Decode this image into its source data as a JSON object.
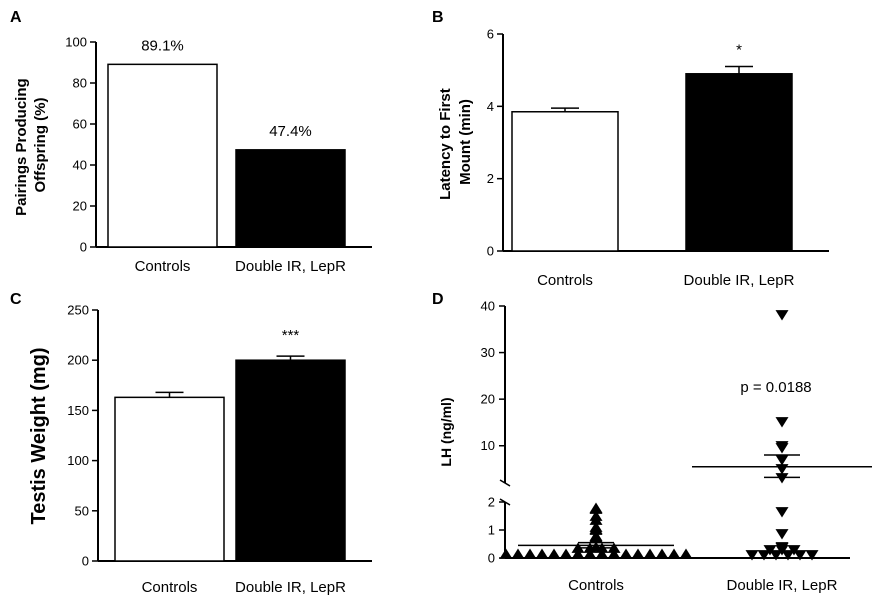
{
  "chart_data": [
    {
      "panel": "A",
      "type": "bar",
      "ylabel": "Pairings Producing Offspring (%)",
      "ylabel_lines": [
        "Pairings Producing",
        "Offspring (%)"
      ],
      "categories": [
        "Controls",
        "Double IR, LepR"
      ],
      "values": [
        89.1,
        47.4
      ],
      "data_labels": [
        "89.1%",
        "47.4%"
      ],
      "bar_fills": [
        "#ffffff",
        "#000000"
      ],
      "ylim": [
        0,
        100
      ],
      "yticks": [
        0,
        20,
        40,
        60,
        80,
        100
      ]
    },
    {
      "panel": "B",
      "type": "bar",
      "ylabel": "Latency to First Mount (min)",
      "ylabel_lines": [
        "Latency to First",
        "Mount (min)"
      ],
      "categories": [
        "Controls",
        "Double IR, LepR"
      ],
      "values": [
        3.85,
        4.9
      ],
      "errors": [
        0.1,
        0.2
      ],
      "annotations": [
        "",
        "*"
      ],
      "bar_fills": [
        "#ffffff",
        "#000000"
      ],
      "ylim": [
        0,
        6
      ],
      "yticks": [
        0,
        2,
        4,
        6
      ]
    },
    {
      "panel": "C",
      "type": "bar",
      "ylabel": "Testis Weight (mg)",
      "categories": [
        "Controls",
        "Double IR, LepR"
      ],
      "values": [
        163,
        200
      ],
      "errors": [
        5,
        4
      ],
      "annotations": [
        "",
        "***"
      ],
      "bar_fills": [
        "#ffffff",
        "#000000"
      ],
      "ylim": [
        0,
        250
      ],
      "yticks": [
        0,
        50,
        100,
        150,
        200,
        250
      ]
    },
    {
      "panel": "D",
      "type": "scatter",
      "ylabel": "LH (ng/ml)",
      "categories": [
        "Controls",
        "Double IR, LepR"
      ],
      "annotation": "p = 0.0188",
      "broken_axis": true,
      "lower_range": [
        0,
        2
      ],
      "upper_range": [
        2,
        40
      ],
      "yticks": [
        0,
        1,
        2,
        10,
        20,
        30,
        40
      ],
      "marker_shapes": [
        "triangle-up",
        "triangle-down"
      ],
      "series": [
        {
          "values": [
            0.15,
            0.15,
            0.15,
            0.15,
            0.15,
            0.15,
            0.15,
            0.15,
            0.15,
            0.15,
            0.15,
            0.15,
            0.15,
            0.15,
            0.15,
            0.15,
            0.35,
            0.35,
            0.35,
            0.35,
            0.4,
            0.7,
            0.75,
            0.8,
            1.0,
            1.05,
            1.1,
            1.35,
            1.5,
            1.75,
            1.8
          ],
          "mean": 0.45,
          "sem_range": [
            0.36,
            0.55
          ]
        },
        {
          "values": [
            0.1,
            0.1,
            0.1,
            0.1,
            0.1,
            0.1,
            0.3,
            0.3,
            0.3,
            0.35,
            0.4,
            0.85,
            1.65,
            3,
            5,
            7,
            9.5,
            10,
            15,
            38
          ],
          "mean": 5.5,
          "sem_range": [
            3.2,
            8
          ]
        }
      ]
    }
  ]
}
